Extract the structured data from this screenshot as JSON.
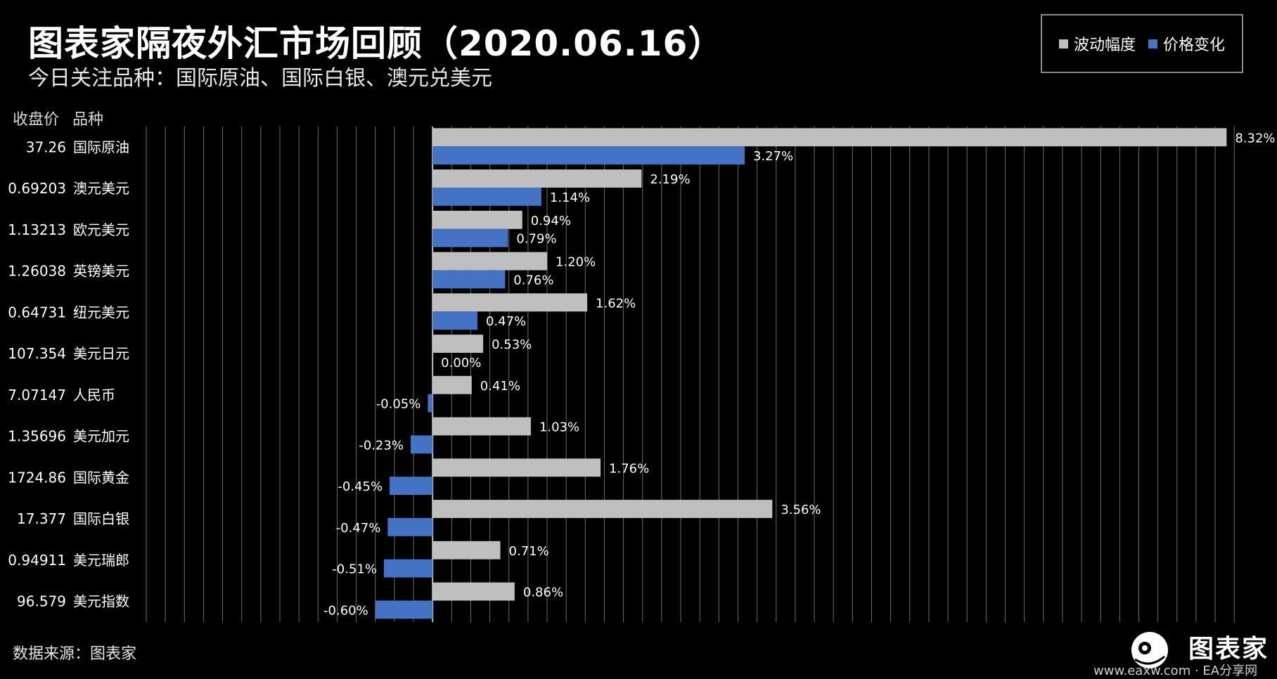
{
  "header": {
    "title": "图表家隔夜外汇市场回顾（2020.06.16）",
    "subtitle": "今日关注品种：国际原油、国际白银、澳元兑美元"
  },
  "columns": {
    "price": "收盘价",
    "name": "品种"
  },
  "footer": {
    "source": "数据来源：图表家",
    "logo_text": "图表家",
    "watermark": "www.eaxw.com · EA分享网"
  },
  "colors": {
    "volatility": "#bfbfbf",
    "change": "#4472c4",
    "grid": "#6e6e6e"
  },
  "chart_data": {
    "type": "bar",
    "orientation": "horizontal",
    "legend_position": "top-right",
    "grid": true,
    "xlim": [
      -0.03,
      0.0845
    ],
    "categories": [
      "国际原油",
      "澳元美元",
      "欧元美元",
      "英镑美元",
      "纽元美元",
      "美元日元",
      "人民币",
      "美元加元",
      "国际黄金",
      "国际白银",
      "美元瑞郎",
      "美元指数"
    ],
    "closing_prices": [
      "37.26",
      "0.69203",
      "1.13213",
      "1.26038",
      "0.64731",
      "107.354",
      "7.07147",
      "1.35696",
      "1724.86",
      "17.377",
      "0.94911",
      "96.579"
    ],
    "series": [
      {
        "name": "波动幅度",
        "values": [
          0.0832,
          0.0219,
          0.0094,
          0.012,
          0.0162,
          0.0053,
          0.0041,
          0.0103,
          0.0176,
          0.0356,
          0.0071,
          0.0086
        ],
        "labels": [
          "8.32%",
          "2.19%",
          "0.94%",
          "1.20%",
          "1.62%",
          "0.53%",
          "0.41%",
          "1.03%",
          "1.76%",
          "3.56%",
          "0.71%",
          "0.86%"
        ]
      },
      {
        "name": "价格变化",
        "values": [
          0.0327,
          0.0114,
          0.0079,
          0.0076,
          0.0047,
          0.0,
          -0.0005,
          -0.0023,
          -0.0045,
          -0.0047,
          -0.0051,
          -0.006
        ],
        "labels": [
          "3.27%",
          "1.14%",
          "0.79%",
          "0.76%",
          "0.47%",
          "0.00%",
          "-0.05%",
          "-0.23%",
          "-0.45%",
          "-0.47%",
          "-0.51%",
          "-0.60%"
        ]
      }
    ]
  }
}
